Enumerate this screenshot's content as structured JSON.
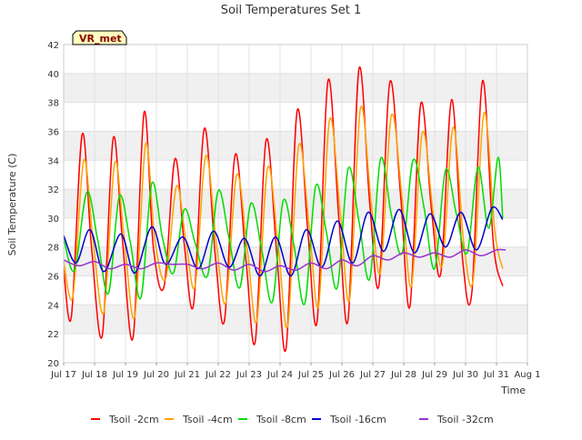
{
  "chart_data": {
    "type": "line",
    "title": "Soil Temperatures Set 1",
    "xlabel": "Time",
    "ylabel": "Soil Temperature (C)",
    "badge": "VR_met",
    "xlim": [
      17,
      32
    ],
    "ylim": [
      20,
      42
    ],
    "y_ticks": [
      20,
      22,
      24,
      26,
      28,
      30,
      32,
      34,
      36,
      38,
      40,
      42
    ],
    "x_ticks": [
      {
        "x": 17,
        "label": "Jul 17"
      },
      {
        "x": 18,
        "label": "Jul 18"
      },
      {
        "x": 19,
        "label": "Jul 19"
      },
      {
        "x": 20,
        "label": "Jul 20"
      },
      {
        "x": 21,
        "label": "Jul 21"
      },
      {
        "x": 22,
        "label": "Jul 22"
      },
      {
        "x": 23,
        "label": "Jul 23"
      },
      {
        "x": 24,
        "label": "Jul 24"
      },
      {
        "x": 25,
        "label": "Jul 25"
      },
      {
        "x": 26,
        "label": "Jul 26"
      },
      {
        "x": 27,
        "label": "Jul 27"
      },
      {
        "x": 28,
        "label": "Jul 28"
      },
      {
        "x": 29,
        "label": "Jul 29"
      },
      {
        "x": 30,
        "label": "Jul 30"
      },
      {
        "x": 31,
        "label": "Jul 31"
      },
      {
        "x": 32,
        "label": "Aug 1"
      }
    ],
    "grid": true,
    "band_color": "#f0f0f0",
    "legend_position": "bottom",
    "series": [
      {
        "name": "Tsoil -2cm",
        "color": "#ff0000",
        "x": [
          17.0,
          17.25,
          17.6,
          17.9,
          18.25,
          18.6,
          18.9,
          19.25,
          19.6,
          19.9,
          20.25,
          20.6,
          20.9,
          21.2,
          21.55,
          21.9,
          22.2,
          22.55,
          22.9,
          23.2,
          23.55,
          23.9,
          24.2,
          24.55,
          24.9,
          25.2,
          25.55,
          25.9,
          26.2,
          26.55,
          26.9,
          27.2,
          27.55,
          27.9,
          28.2,
          28.55,
          28.9,
          29.2,
          29.55,
          29.9,
          30.2,
          30.55,
          30.9,
          31.2
        ],
        "y": [
          26.5,
          23.2,
          35.8,
          28.0,
          21.9,
          35.5,
          28.5,
          21.8,
          37.3,
          28.0,
          25.3,
          34.1,
          28.2,
          24.0,
          36.2,
          27.5,
          22.9,
          34.4,
          27.0,
          21.5,
          35.4,
          27.3,
          21.1,
          37.4,
          29.0,
          22.9,
          39.5,
          30.0,
          23.0,
          40.3,
          31.0,
          25.4,
          39.4,
          31.5,
          23.9,
          37.9,
          30.5,
          26.2,
          38.2,
          27.2,
          24.8,
          39.5,
          28.2,
          25.3
        ]
      },
      {
        "name": "Tsoil -4cm",
        "color": "#ffa500",
        "x": [
          17.0,
          17.3,
          17.65,
          17.95,
          18.3,
          18.65,
          18.95,
          19.3,
          19.65,
          19.95,
          20.3,
          20.65,
          20.95,
          21.25,
          21.6,
          21.95,
          22.25,
          22.6,
          22.95,
          23.25,
          23.6,
          23.95,
          24.25,
          24.6,
          24.95,
          25.25,
          25.6,
          25.95,
          26.25,
          26.6,
          26.95,
          27.25,
          27.6,
          27.95,
          28.25,
          28.6,
          28.95,
          29.25,
          29.6,
          29.95,
          30.25,
          30.6,
          30.95,
          31.2
        ],
        "y": [
          27.0,
          24.6,
          34.0,
          28.5,
          23.5,
          33.8,
          28.8,
          23.2,
          35.1,
          28.5,
          25.8,
          32.2,
          28.5,
          25.3,
          34.3,
          28.0,
          24.2,
          33.0,
          27.6,
          22.9,
          33.5,
          27.8,
          22.6,
          35.0,
          29.3,
          24.0,
          36.8,
          30.3,
          24.4,
          37.6,
          31.0,
          26.3,
          37.1,
          31.3,
          25.3,
          35.9,
          30.4,
          26.8,
          36.3,
          28.1,
          25.8,
          37.3,
          29.0,
          26.5
        ]
      },
      {
        "name": "Tsoil -8cm",
        "color": "#00dd00",
        "x": [
          17.0,
          17.35,
          17.75,
          18.1,
          18.45,
          18.8,
          19.15,
          19.5,
          19.85,
          20.2,
          20.55,
          20.9,
          21.25,
          21.65,
          22.0,
          22.35,
          22.7,
          23.05,
          23.4,
          23.75,
          24.1,
          24.45,
          24.8,
          25.15,
          25.5,
          25.85,
          26.2,
          26.55,
          26.9,
          27.25,
          27.6,
          27.95,
          28.3,
          28.65,
          29.0,
          29.35,
          29.7,
          30.05,
          30.4,
          30.75,
          31.05,
          31.2
        ],
        "y": [
          28.6,
          26.4,
          31.8,
          28.5,
          24.8,
          31.5,
          28.4,
          24.5,
          32.4,
          28.6,
          26.2,
          30.6,
          28.3,
          26.0,
          31.9,
          28.6,
          25.2,
          31.0,
          27.9,
          24.2,
          31.2,
          28.1,
          24.1,
          32.2,
          29.0,
          25.2,
          33.4,
          29.8,
          25.8,
          34.1,
          30.2,
          27.6,
          34.0,
          30.8,
          26.5,
          33.3,
          30.3,
          27.6,
          33.5,
          29.3,
          34.2,
          30.0
        ]
      },
      {
        "name": "Tsoil -16cm",
        "color": "#0000cc",
        "x": [
          17.0,
          17.4,
          17.85,
          18.3,
          18.85,
          19.3,
          19.85,
          20.3,
          20.85,
          21.35,
          21.85,
          22.35,
          22.85,
          23.35,
          23.85,
          24.35,
          24.85,
          25.35,
          25.85,
          26.35,
          26.85,
          27.35,
          27.85,
          28.35,
          28.85,
          29.35,
          29.85,
          30.35,
          30.85,
          31.2
        ],
        "y": [
          28.8,
          26.9,
          29.2,
          26.3,
          28.9,
          26.2,
          29.4,
          26.8,
          28.7,
          26.5,
          29.1,
          26.6,
          28.6,
          26.0,
          28.7,
          26.0,
          29.2,
          26.6,
          29.8,
          26.9,
          30.4,
          27.7,
          30.6,
          27.6,
          30.3,
          28.0,
          30.4,
          27.8,
          30.7,
          29.9
        ]
      },
      {
        "name": "Tsoil -32cm",
        "color": "#9932cc",
        "x": [
          17.0,
          17.5,
          18.0,
          18.5,
          19.0,
          19.5,
          20.0,
          20.5,
          21.0,
          21.5,
          22.0,
          22.5,
          23.0,
          23.5,
          24.0,
          24.5,
          25.0,
          25.5,
          26.0,
          26.5,
          27.0,
          27.5,
          28.0,
          28.5,
          29.0,
          29.5,
          30.0,
          30.5,
          31.0,
          31.3
        ],
        "y": [
          27.1,
          26.7,
          27.0,
          26.5,
          26.8,
          26.5,
          26.9,
          26.8,
          26.8,
          26.5,
          26.9,
          26.4,
          26.8,
          26.3,
          26.7,
          26.4,
          26.9,
          26.5,
          27.1,
          26.7,
          27.4,
          27.1,
          27.6,
          27.3,
          27.6,
          27.3,
          27.8,
          27.4,
          27.8,
          27.8
        ]
      }
    ]
  }
}
